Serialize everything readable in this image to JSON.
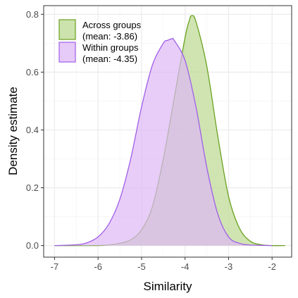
{
  "chart_data": {
    "type": "area",
    "xlabel": "Similarity",
    "ylabel": "Density estimate",
    "xlim": [
      -7.25,
      -1.55
    ],
    "ylim": [
      -0.04,
      0.83
    ],
    "x_ticks": [
      -7,
      -6,
      -5,
      -4,
      -3,
      -2
    ],
    "x_tick_labels": [
      "-7",
      "-6",
      "-5",
      "-4",
      "-3",
      "-2"
    ],
    "y_ticks": [
      0.0,
      0.2,
      0.4,
      0.6,
      0.8
    ],
    "y_tick_labels": [
      "0.0",
      "0.2",
      "0.4",
      "0.6",
      "0.8"
    ],
    "grid": true,
    "legend_position": "top-left",
    "series": [
      {
        "name_lines": [
          "Across groups",
          "(mean: -3.86)"
        ],
        "stroke": "#6aa121",
        "fill": "#bcd991",
        "x": [
          -7.0,
          -6.5,
          -6.0,
          -5.75,
          -5.5,
          -5.25,
          -5.0,
          -4.75,
          -4.5,
          -4.25,
          -4.0,
          -3.9,
          -3.85,
          -3.75,
          -3.5,
          -3.25,
          -3.0,
          -2.75,
          -2.5,
          -2.25,
          -2.0,
          -1.7
        ],
        "y": [
          0.0,
          0.0,
          0.0,
          0.002,
          0.008,
          0.02,
          0.055,
          0.135,
          0.3,
          0.51,
          0.72,
          0.78,
          0.795,
          0.775,
          0.62,
          0.38,
          0.17,
          0.06,
          0.015,
          0.003,
          0.0,
          0.0
        ]
      },
      {
        "name_lines": [
          "Within groups",
          "(mean: -4.35)"
        ],
        "stroke": "#a05ee8",
        "fill": "#ddb8f5",
        "x": [
          -7.0,
          -6.5,
          -6.25,
          -6.0,
          -5.75,
          -5.5,
          -5.25,
          -5.0,
          -4.75,
          -4.5,
          -4.4,
          -4.3,
          -4.25,
          -4.0,
          -3.75,
          -3.5,
          -3.25,
          -3.0,
          -2.75,
          -2.5,
          -2.0
        ],
        "y": [
          0.0,
          0.003,
          0.01,
          0.03,
          0.075,
          0.16,
          0.3,
          0.48,
          0.625,
          0.7,
          0.71,
          0.715,
          0.71,
          0.64,
          0.48,
          0.27,
          0.11,
          0.03,
          0.008,
          0.002,
          0.0
        ]
      }
    ]
  },
  "colors": {
    "panel_border": "#333333",
    "grid_major": "#ebebeb",
    "grid_minor": "#f5f5f5",
    "tick_text": "#4d4d4d",
    "across_stroke": "#6aa121",
    "across_fill": "#bcd991",
    "within_stroke": "#a05ee8",
    "within_fill": "#ddb8f5"
  }
}
